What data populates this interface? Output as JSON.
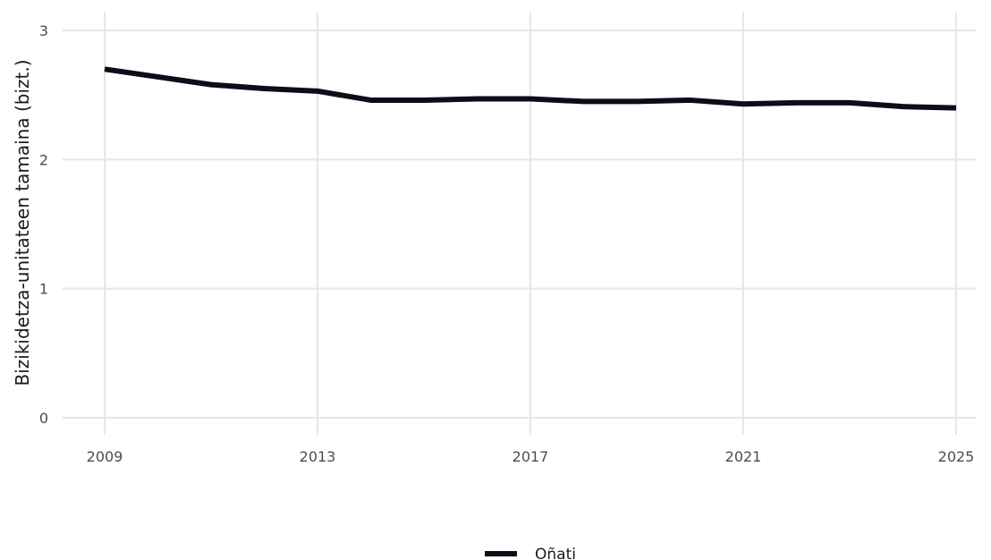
{
  "chart_data": {
    "type": "line",
    "ylabel": "Bizikidetza-unitateen tamaina (bizt.)",
    "xlabel": "",
    "xlim": [
      2009,
      2025
    ],
    "ylim": [
      0,
      3
    ],
    "x_ticks": [
      "2009",
      "2013",
      "2017",
      "2021",
      "2025"
    ],
    "y_ticks": [
      "0",
      "1",
      "2",
      "3"
    ],
    "grid": true,
    "legend_position": "bottom",
    "series": [
      {
        "name": "Oñati",
        "color": "#0d0d1a",
        "x": [
          2009,
          2010,
          2011,
          2012,
          2013,
          2014,
          2015,
          2016,
          2017,
          2018,
          2019,
          2020,
          2021,
          2022,
          2023,
          2024,
          2025
        ],
        "values": [
          2.7,
          2.64,
          2.58,
          2.55,
          2.53,
          2.46,
          2.46,
          2.47,
          2.47,
          2.45,
          2.45,
          2.46,
          2.43,
          2.44,
          2.44,
          2.41,
          2.4
        ]
      }
    ]
  }
}
